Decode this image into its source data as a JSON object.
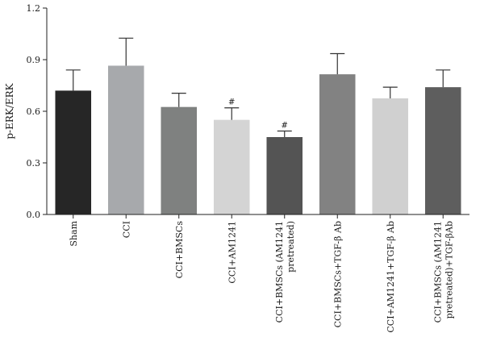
{
  "chart_data": {
    "type": "bar",
    "ylabel": "p-ERK/ERK",
    "ylim": [
      0,
      1.2
    ],
    "yticks": [
      "0.0",
      "0.3",
      "0.6",
      "0.9",
      "1.2"
    ],
    "categories": [
      [
        "Sham"
      ],
      [
        "CCI"
      ],
      [
        "CCI+BMSCs"
      ],
      [
        "CCI+AM1241"
      ],
      [
        "CCI+BMSCs (AM1241",
        "pretreated)"
      ],
      [
        "CCI+BMSCs+TGF-β Ab"
      ],
      [
        "CCI+AM1241+TGF-β Ab"
      ],
      [
        "CCI+BMSCs (AM1241",
        "pretreated)+TGF-βAb"
      ]
    ],
    "values": [
      0.72,
      0.865,
      0.625,
      0.55,
      0.45,
      0.815,
      0.675,
      0.74
    ],
    "errors": [
      0.12,
      0.16,
      0.08,
      0.07,
      0.035,
      0.12,
      0.065,
      0.1
    ],
    "annotations": [
      "",
      "",
      "",
      "#",
      "#",
      "",
      "",
      ""
    ],
    "colors": [
      "#262626",
      "#a7a9ac",
      "#7f8180",
      "#d4d4d4",
      "#545454",
      "#828282",
      "#d0d0d0",
      "#5e5e5e"
    ]
  }
}
